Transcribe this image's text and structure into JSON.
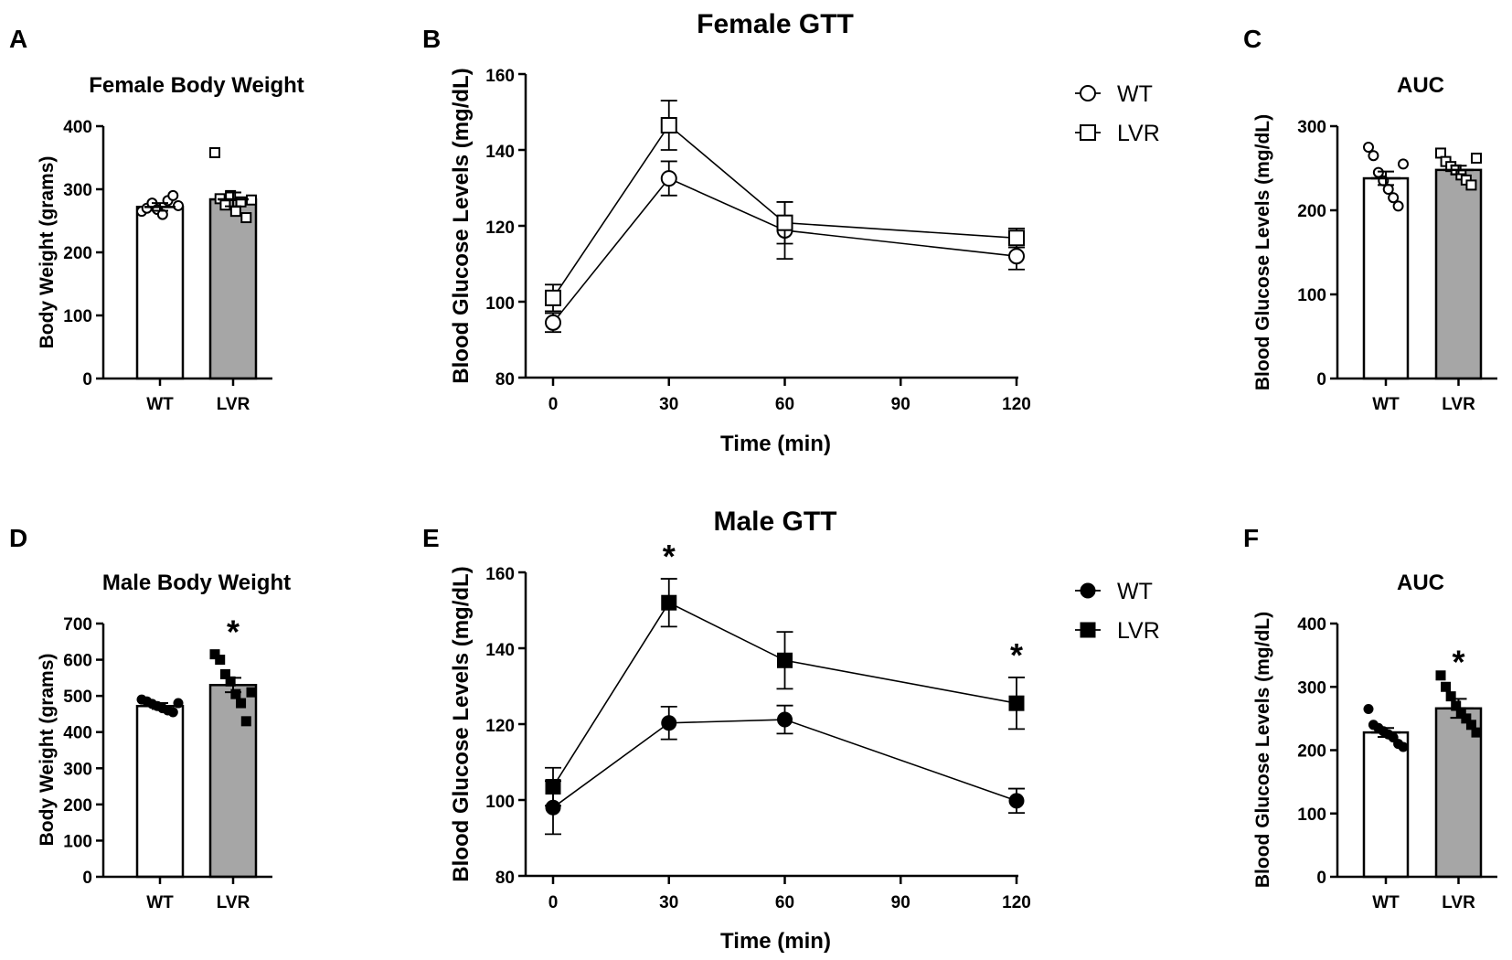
{
  "chart_data": [
    {
      "id": "A",
      "panel_label": "A",
      "type": "bar",
      "title": "Female Body Weight",
      "ylabel": "Body Weight (grams)",
      "ylim": [
        0,
        400
      ],
      "yticks": [
        0,
        100,
        200,
        300,
        400
      ],
      "categories": [
        "WT",
        "LVR"
      ],
      "values": [
        272,
        284
      ],
      "sem": [
        6,
        11
      ],
      "bar_colors": [
        "#ffffff",
        "#a6a6a6"
      ],
      "marker": "circle-open-vs-square-open",
      "points": [
        [
          265,
          270,
          278,
          268,
          260,
          282,
          290,
          274
        ],
        [
          358,
          285,
          275,
          290,
          265,
          280,
          255,
          283
        ]
      ],
      "significant": [
        false,
        false
      ]
    },
    {
      "id": "B",
      "panel_label": "B",
      "type": "line",
      "title": "Female GTT",
      "xlabel": "Time (min)",
      "ylabel": "Blood Glucose Levels (mg/dL)",
      "x": [
        0,
        30,
        60,
        120
      ],
      "xlim": [
        0,
        120
      ],
      "xticks": [
        0,
        30,
        60,
        90,
        120
      ],
      "ylim": [
        80,
        160
      ],
      "yticks": [
        80,
        100,
        120,
        140,
        160
      ],
      "fill": "open",
      "series": [
        {
          "name": "WT",
          "marker": "circle",
          "values": [
            94.5,
            132.5,
            118.8,
            112
          ],
          "sem": [
            2.5,
            4.5,
            7.5,
            3.5
          ]
        },
        {
          "name": "LVR",
          "marker": "square",
          "values": [
            101,
            146.5,
            120.8,
            116.8
          ],
          "sem": [
            3.5,
            6.5,
            5.5,
            2.5
          ]
        }
      ],
      "significant_x": []
    },
    {
      "id": "C",
      "panel_label": "C",
      "type": "bar",
      "title": "AUC",
      "ylabel": "Blood Glucose Levels (mg/dL)",
      "ylim": [
        0,
        300
      ],
      "yticks": [
        0,
        100,
        200,
        300
      ],
      "categories": [
        "WT",
        "LVR"
      ],
      "values": [
        238,
        248
      ],
      "sem": [
        8,
        5
      ],
      "bar_colors": [
        "#ffffff",
        "#a6a6a6"
      ],
      "marker": "circle-open-vs-square-open",
      "points": [
        [
          275,
          265,
          245,
          235,
          225,
          215,
          205,
          255
        ],
        [
          268,
          258,
          252,
          248,
          242,
          236,
          230,
          262
        ]
      ],
      "significant": [
        false,
        false
      ]
    },
    {
      "id": "D",
      "panel_label": "D",
      "type": "bar",
      "title": "Male Body Weight",
      "ylabel": "Body Weight (grams)",
      "ylim": [
        0,
        700
      ],
      "yticks": [
        0,
        100,
        200,
        300,
        400,
        500,
        600,
        700
      ],
      "categories": [
        "WT",
        "LVR"
      ],
      "values": [
        472,
        530
      ],
      "sem": [
        8,
        20
      ],
      "bar_colors": [
        "#ffffff",
        "#a6a6a6"
      ],
      "marker": "circle-filled-vs-square-filled",
      "points": [
        [
          490,
          485,
          478,
          472,
          466,
          460,
          455,
          480
        ],
        [
          615,
          600,
          560,
          540,
          505,
          480,
          430,
          510
        ]
      ],
      "significant": [
        false,
        true
      ],
      "star": "*"
    },
    {
      "id": "E",
      "panel_label": "E",
      "type": "line",
      "title": "Male GTT",
      "xlabel": "Time (min)",
      "ylabel": "Blood Glucose Levels (mg/dL)",
      "x": [
        0,
        30,
        60,
        120
      ],
      "xlim": [
        0,
        120
      ],
      "xticks": [
        0,
        30,
        60,
        90,
        120
      ],
      "ylim": [
        80,
        160
      ],
      "yticks": [
        80,
        100,
        120,
        140,
        160
      ],
      "fill": "filled",
      "series": [
        {
          "name": "WT",
          "marker": "circle",
          "values": [
            98,
            120.3,
            121.2,
            99.8
          ],
          "sem": [
            7,
            4.3,
            3.7,
            3.2
          ]
        },
        {
          "name": "LVR",
          "marker": "square",
          "values": [
            103.5,
            152,
            136.8,
            125.5
          ],
          "sem": [
            5,
            6.3,
            7.5,
            6.8
          ]
        }
      ],
      "significant_x": [
        30,
        120
      ],
      "star": "*"
    },
    {
      "id": "F",
      "panel_label": "F",
      "type": "bar",
      "title": "AUC",
      "ylabel": "Blood Glucose Levels (mg/dL)",
      "ylim": [
        0,
        400
      ],
      "yticks": [
        0,
        100,
        200,
        300,
        400
      ],
      "categories": [
        "WT",
        "LVR"
      ],
      "values": [
        228,
        266
      ],
      "sem": [
        7,
        15
      ],
      "bar_colors": [
        "#ffffff",
        "#a6a6a6"
      ],
      "marker": "circle-filled-vs-square-filled",
      "points": [
        [
          265,
          240,
          235,
          230,
          225,
          220,
          210,
          205
        ],
        [
          318,
          300,
          285,
          270,
          260,
          250,
          240,
          228
        ]
      ],
      "significant": [
        false,
        true
      ],
      "star": "*"
    }
  ]
}
